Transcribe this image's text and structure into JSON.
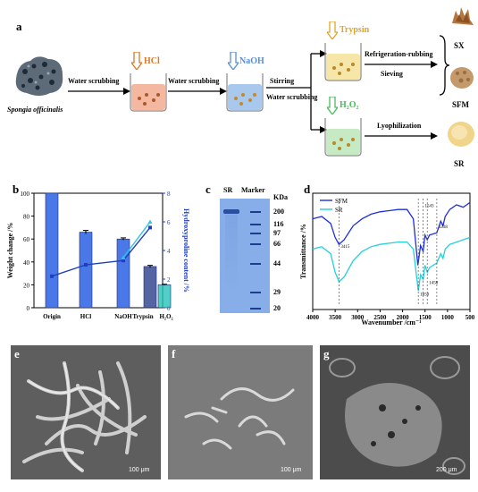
{
  "panel_a": {
    "label": "a",
    "source_name": "Spongia officinalis",
    "steps": [
      {
        "text": "Water scrubbing"
      },
      {
        "text": "Water scrubbing"
      },
      {
        "text": "Stirring"
      },
      {
        "text": "Water scrubbing"
      },
      {
        "text": "Refrigeration-rubbing"
      },
      {
        "text": "Sieving"
      },
      {
        "text": "Lyophilization"
      }
    ],
    "reagents": {
      "hcl": "HCl",
      "naoh": "NaOH",
      "trypsin": "Trypsin",
      "h2o2": "H₂O₂"
    },
    "products": {
      "sx": "SX",
      "sfm": "SFM",
      "sr": "SR"
    },
    "colors": {
      "hcl": "#d97a2b",
      "naoh": "#5a8fd6",
      "trypsin": "#e0a52a",
      "h2o2": "#4cbb5e"
    }
  },
  "panel_b": {
    "label": "b"
  },
  "panel_c": {
    "label": "c",
    "lane_sr": "SR",
    "lane_marker": "Marker",
    "unit": "KDa",
    "markers": [
      "200",
      "116",
      "97",
      "66",
      "44",
      "29",
      "20"
    ]
  },
  "panel_d": {
    "label": "d"
  },
  "panel_e": {
    "label": "e",
    "scale": "100 μm"
  },
  "panel_f": {
    "label": "f",
    "scale": "100 μm"
  },
  "panel_g": {
    "label": "g",
    "scale": "200 μm"
  },
  "chart_data": [
    {
      "type": "bar",
      "categories": [
        "Origin",
        "HCl",
        "NaOH",
        "Trypsin",
        "H₂O₂"
      ],
      "values": [
        100,
        66,
        60,
        36,
        20
      ],
      "errors": [
        0,
        1.5,
        1,
        1,
        0.5
      ],
      "ylabel": "Weight change /%",
      "ylim": [
        0,
        100
      ],
      "yticks": [
        "0",
        "20",
        "40",
        "60",
        "80",
        "100"
      ],
      "y2label": "Hydroxyproline content /%",
      "y2lim": [
        0,
        8
      ],
      "y2ticks": [
        "0",
        "2",
        "4",
        "6",
        "8"
      ],
      "series_y2": [
        {
          "values": [
            2.2,
            3.0,
            3.3,
            5.6
          ],
          "color": "#1f3fbf"
        },
        {
          "values": [
            3.5,
            6.0
          ],
          "color": "#2ec4e6"
        }
      ],
      "colors": {
        "bar": "#4a78e8",
        "bar_trypsin": "#2a3e8c",
        "bar_h2o2": "#25c2b6"
      }
    },
    {
      "type": "line",
      "xlabel": "Wavenumber /cm⁻¹",
      "ylabel": "Transmittance /%",
      "xlim": [
        4000,
        500
      ],
      "xticks": [
        "4000",
        "3500",
        "3000",
        "2500",
        "2000",
        "1500",
        "1000",
        "500"
      ],
      "legend_position": "top-left",
      "series": [
        {
          "name": "SFM",
          "color": "#1f2fd6",
          "x": [
            4000,
            3800,
            3600,
            3500,
            3415,
            3300,
            3100,
            2900,
            2700,
            2500,
            2300,
            2100,
            1900,
            1760,
            1660,
            1600,
            1543,
            1500,
            1450,
            1400,
            1238,
            1150,
            1100,
            1050,
            950,
            800,
            650,
            500
          ],
          "y": [
            78,
            80,
            74,
            62,
            56,
            60,
            72,
            78,
            82,
            84,
            85,
            86,
            86,
            78,
            38,
            55,
            50,
            64,
            60,
            64,
            66,
            76,
            72,
            80,
            86,
            90,
            88,
            92
          ]
        },
        {
          "name": "SR",
          "color": "#22d0dc",
          "x": [
            4000,
            3800,
            3600,
            3500,
            3415,
            3300,
            3100,
            2900,
            2700,
            2500,
            2300,
            2100,
            1900,
            1760,
            1650,
            1600,
            1543,
            1500,
            1450,
            1400,
            1238,
            1150,
            1100,
            1050,
            950,
            800,
            650,
            500
          ],
          "y": [
            52,
            54,
            48,
            32,
            24,
            28,
            42,
            50,
            54,
            56,
            57,
            58,
            58,
            52,
            16,
            30,
            26,
            38,
            32,
            36,
            40,
            48,
            44,
            52,
            56,
            58,
            60,
            62
          ]
        }
      ],
      "annotations": [
        "3415",
        "1543",
        "1238",
        "1650",
        "1450",
        "1238"
      ]
    }
  ]
}
